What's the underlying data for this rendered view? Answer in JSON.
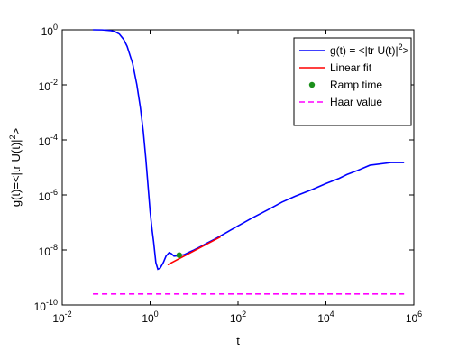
{
  "chart_data": {
    "type": "line",
    "xlabel": "t",
    "ylabel": "g(t)=<|tr U(t)|²>",
    "xscale": "log",
    "yscale": "log",
    "xlim": [
      0.01,
      1000000
    ],
    "ylim": [
      1e-10,
      1
    ],
    "grid": false,
    "legend_position": "top-right",
    "x_ticks": [
      {
        "value": 0.01,
        "base": "10",
        "exp": "-2"
      },
      {
        "value": 1,
        "base": "10",
        "exp": "0"
      },
      {
        "value": 100,
        "base": "10",
        "exp": "2"
      },
      {
        "value": 10000,
        "base": "10",
        "exp": "4"
      },
      {
        "value": 1000000,
        "base": "10",
        "exp": "6"
      }
    ],
    "y_ticks": [
      {
        "value": 1e-10,
        "base": "10",
        "exp": "-10"
      },
      {
        "value": 1e-08,
        "base": "10",
        "exp": "-8"
      },
      {
        "value": 1e-06,
        "base": "10",
        "exp": "-6"
      },
      {
        "value": 0.0001,
        "base": "10",
        "exp": "-4"
      },
      {
        "value": 0.01,
        "base": "10",
        "exp": "-2"
      },
      {
        "value": 1,
        "base": "10",
        "exp": "0"
      }
    ],
    "series": [
      {
        "name": "g(t) = <|tr U(t)|²>",
        "color": "#0000ff",
        "style": "solid",
        "x": [
          0.05,
          0.08,
          0.1,
          0.13,
          0.16,
          0.2,
          0.25,
          0.3,
          0.4,
          0.5,
          0.6,
          0.7,
          0.8,
          0.9,
          1.0,
          1.1,
          1.2,
          1.35,
          1.5,
          1.7,
          2.0,
          2.3,
          2.7,
          3.0,
          3.5,
          4.5,
          6,
          8,
          10,
          15,
          20,
          30,
          50,
          100,
          200,
          500,
          1000,
          2000,
          5000,
          10000,
          20000,
          30000,
          50000,
          100000,
          300000,
          600000
        ],
        "y": [
          1.0,
          0.99,
          0.97,
          0.93,
          0.85,
          0.7,
          0.45,
          0.25,
          0.06,
          0.01,
          0.0015,
          0.0002,
          2e-05,
          2e-06,
          2.5e-07,
          6e-08,
          2e-08,
          3.5e-09,
          2e-09,
          2.2e-09,
          3.5e-09,
          6e-09,
          8e-09,
          7.5e-09,
          6e-09,
          6.2e-09,
          6.8e-09,
          8.5e-09,
          1e-08,
          1.4e-08,
          1.8e-08,
          2.5e-08,
          4e-08,
          7.5e-08,
          1.4e-07,
          3e-07,
          5.5e-07,
          9e-07,
          1.6e-06,
          2.6e-06,
          4e-06,
          5.5e-06,
          7.5e-06,
          1.2e-05,
          1.5e-05,
          1.5e-05
        ]
      },
      {
        "name": "Linear fit",
        "color": "#ff0000",
        "style": "solid",
        "x": [
          2.5,
          40
        ],
        "y": [
          2.9e-09,
          3e-08
        ]
      },
      {
        "name": "Ramp time",
        "color": "#1b8f1b",
        "style": "marker",
        "x": [
          4.6
        ],
        "y": [
          6.5e-09
        ]
      },
      {
        "name": "Haar value",
        "color": "#ff00ff",
        "style": "dashed",
        "x": [
          0.05,
          600000
        ],
        "y": [
          2.5e-10,
          2.5e-10
        ]
      }
    ]
  }
}
